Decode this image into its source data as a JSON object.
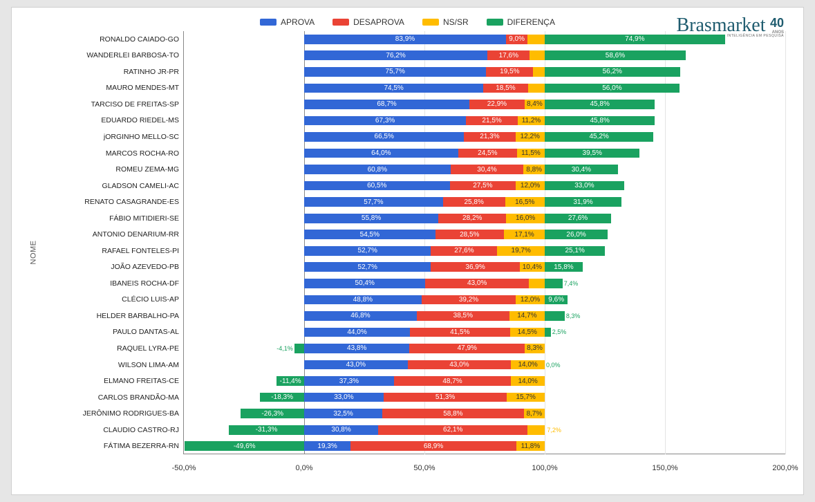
{
  "logo": {
    "main": "Brasmarket",
    "sub": "INTELIGÊNCIA EM PESQUISA",
    "badge": "40",
    "badge_sub": "ANOS"
  },
  "chart": {
    "type": "stacked-bar-horizontal",
    "yaxis_title": "NOME",
    "background": "#ffffff",
    "grid_color": "#e4e4e4",
    "axis_color": "#888888",
    "label_fontsize": 10.5,
    "value_fontsize": 10,
    "legend": [
      {
        "key": "aprova",
        "label": "APROVA",
        "color": "#3267d6"
      },
      {
        "key": "desaprova",
        "label": "DESAPROVA",
        "color": "#ea4335"
      },
      {
        "key": "nssr",
        "label": "NS/SR",
        "color": "#ffbc00"
      },
      {
        "key": "diferenca",
        "label": "DIFERENÇA",
        "color": "#1aa260"
      }
    ],
    "xaxis": {
      "min": -50,
      "max": 200,
      "ticks": [
        -50,
        0,
        50,
        100,
        150,
        200
      ],
      "tick_labels": [
        "-50,0%",
        "0,0%",
        "50,0%",
        "100,0%",
        "150,0%",
        "200,0%"
      ]
    },
    "rows": [
      {
        "name": "RONALDO CAIADO-GO",
        "aprova": 83.9,
        "desaprova": 9.0,
        "nssr": 7.1,
        "diferenca": 74.9
      },
      {
        "name": "WANDERLEI BARBOSA-TO",
        "aprova": 76.2,
        "desaprova": 17.6,
        "nssr": 6.2,
        "diferenca": 58.6
      },
      {
        "name": "RATINHO JR-PR",
        "aprova": 75.7,
        "desaprova": 19.5,
        "nssr": 4.8,
        "diferenca": 56.2
      },
      {
        "name": "MAURO MENDES-MT",
        "aprova": 74.5,
        "desaprova": 18.5,
        "nssr": 7.0,
        "diferenca": 56.0
      },
      {
        "name": "TARCISO DE FREITAS-SP",
        "aprova": 68.7,
        "desaprova": 22.9,
        "nssr": 8.4,
        "diferenca": 45.8
      },
      {
        "name": "EDUARDO RIEDEL-MS",
        "aprova": 67.3,
        "desaprova": 21.5,
        "nssr": 11.2,
        "diferenca": 45.8
      },
      {
        "name": "jORGINHO MELLO-SC",
        "aprova": 66.5,
        "desaprova": 21.3,
        "nssr": 12.2,
        "diferenca": 45.2
      },
      {
        "name": "MARCOS ROCHA-RO",
        "aprova": 64.0,
        "desaprova": 24.5,
        "nssr": 11.5,
        "diferenca": 39.5
      },
      {
        "name": "ROMEU ZEMA-MG",
        "aprova": 60.8,
        "desaprova": 30.4,
        "nssr": 8.8,
        "diferenca": 30.4
      },
      {
        "name": "GLADSON CAMELI-AC",
        "aprova": 60.5,
        "desaprova": 27.5,
        "nssr": 12.0,
        "diferenca": 33.0
      },
      {
        "name": "RENATO CASAGRANDE-ES",
        "aprova": 57.7,
        "desaprova": 25.8,
        "nssr": 16.5,
        "diferenca": 31.9
      },
      {
        "name": "FÁBIO MITIDIERI-SE",
        "aprova": 55.8,
        "desaprova": 28.2,
        "nssr": 16.0,
        "diferenca": 27.6
      },
      {
        "name": "ANTONIO DENARIUM-RR",
        "aprova": 54.5,
        "desaprova": 28.5,
        "nssr": 17.1,
        "diferenca": 26.0
      },
      {
        "name": "RAFAEL FONTELES-PI",
        "aprova": 52.7,
        "desaprova": 27.6,
        "nssr": 19.7,
        "diferenca": 25.1
      },
      {
        "name": "JOÃO AZEVEDO-PB",
        "aprova": 52.7,
        "desaprova": 36.9,
        "nssr": 10.4,
        "diferenca": 15.8
      },
      {
        "name": "IBANEIS ROCHA-DF",
        "aprova": 50.4,
        "desaprova": 43.0,
        "nssr": 6.6,
        "diferenca": 7.4
      },
      {
        "name": "CLÉCIO LUIS-AP",
        "aprova": 48.8,
        "desaprova": 39.2,
        "nssr": 12.0,
        "diferenca": 9.6
      },
      {
        "name": "HELDER BARBALHO-PA",
        "aprova": 46.8,
        "desaprova": 38.5,
        "nssr": 14.7,
        "diferenca": 8.3
      },
      {
        "name": "PAULO DANTAS-AL",
        "aprova": 44.0,
        "desaprova": 41.5,
        "nssr": 14.5,
        "diferenca": 2.5
      },
      {
        "name": "RAQUEL LYRA-PE",
        "aprova": 43.8,
        "desaprova": 47.9,
        "nssr": 8.3,
        "diferenca": -4.1
      },
      {
        "name": "WILSON LIMA-AM",
        "aprova": 43.0,
        "desaprova": 43.0,
        "nssr": 14.0,
        "diferenca": 0.0
      },
      {
        "name": "ELMANO FREITAS-CE",
        "aprova": 37.3,
        "desaprova": 48.7,
        "nssr": 14.0,
        "diferenca": -11.4
      },
      {
        "name": "CARLOS BRANDÃO-MA",
        "aprova": 33.0,
        "desaprova": 51.3,
        "nssr": 15.7,
        "diferenca": -18.3
      },
      {
        "name": "JERÔNIMO RODRIGUES-BA",
        "aprova": 32.5,
        "desaprova": 58.8,
        "nssr": 8.7,
        "diferenca": -26.3
      },
      {
        "name": "CLAUDIO CASTRO-RJ",
        "aprova": 30.8,
        "desaprova": 62.1,
        "nssr": 7.2,
        "diferenca": -31.3
      },
      {
        "name": "FÁTIMA BEZERRA-RN",
        "aprova": 19.3,
        "desaprova": 68.9,
        "nssr": 11.8,
        "diferenca": -49.6
      }
    ]
  }
}
